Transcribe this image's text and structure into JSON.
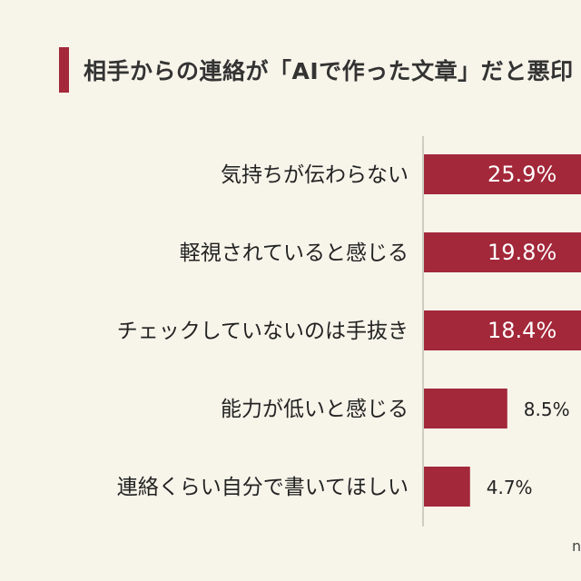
{
  "title": "相手からの連絡が「AIで作った文章」だと悪印",
  "watermark": "n",
  "colors": {
    "bar": "#a3283a",
    "accent": "#a3283a",
    "background": "#f7f5ea"
  },
  "chart_data": {
    "type": "bar",
    "orientation": "horizontal",
    "title": "相手からの連絡が「AIで作った文章」だと悪印",
    "categories": [
      "気持ちが伝わらない",
      "軽視されていると感じる",
      "チェックしていないのは手抜き",
      "能力が低いと感じる",
      "連絡くらい自分で書いてほしい"
    ],
    "values": [
      25.9,
      19.8,
      18.4,
      8.5,
      4.7
    ],
    "value_labels": [
      "25.9%",
      "19.8%",
      "18.4%",
      "8.5%",
      "4.7%"
    ],
    "xlim": [
      0,
      35
    ],
    "grid": false,
    "legend": "none"
  }
}
